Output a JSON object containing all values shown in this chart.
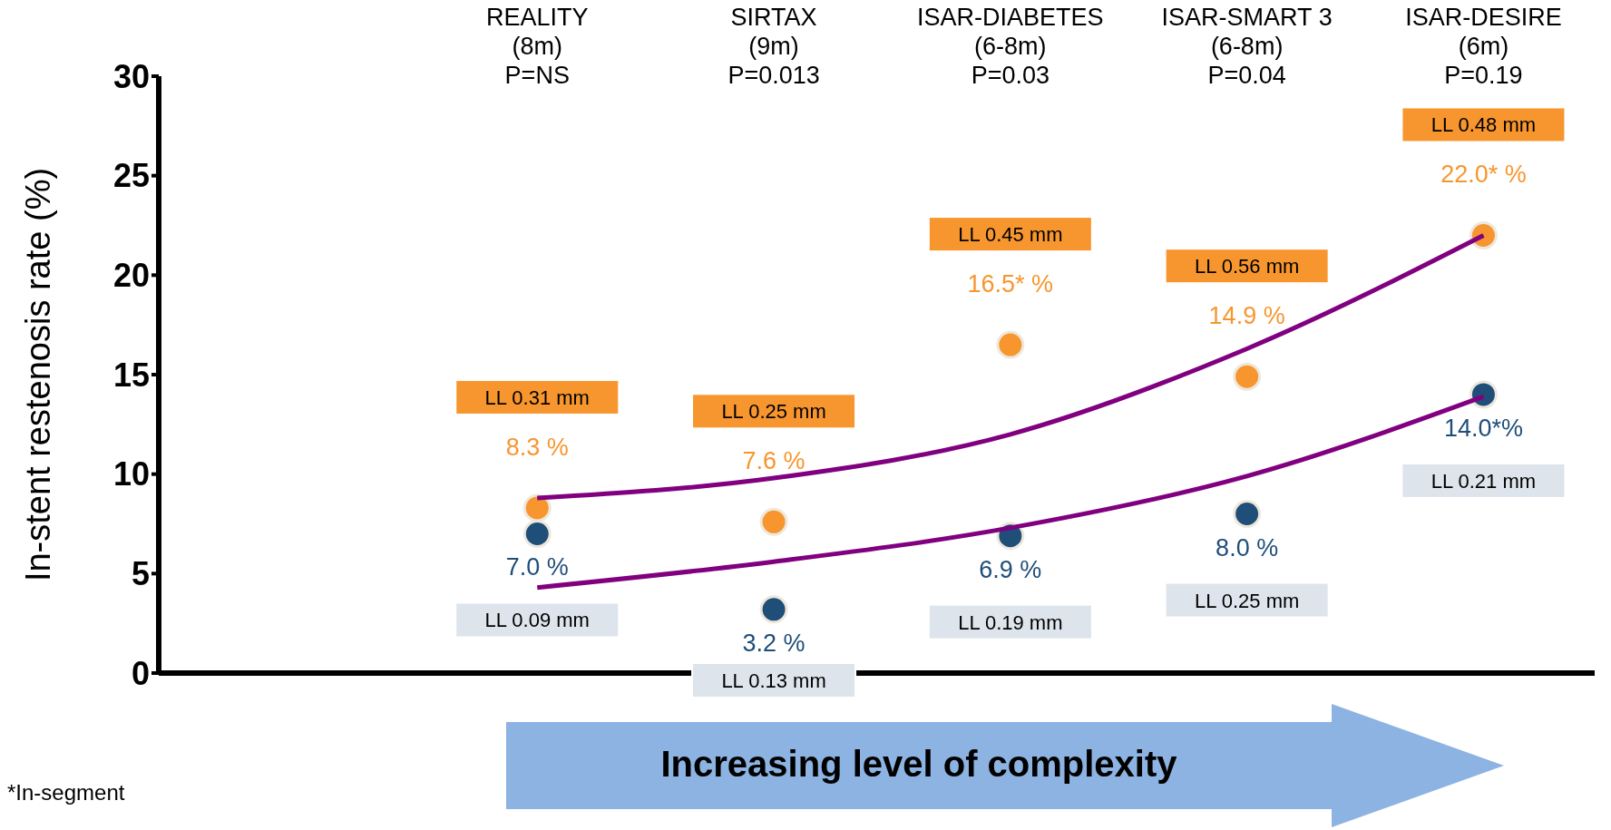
{
  "chart_data": {
    "type": "scatter",
    "ylabel": "In-stent restenosis rate (%)",
    "categories": [
      "REALITY\n(8m)\nP=NS",
      "SIRTAX\n(9m)\nP=0.013",
      "ISAR-DIABETES\n(6-8m)\nP=0.03",
      "ISAR-SMART 3\n(6-8m)\nP=0.04",
      "ISAR-DESIRE\n(6m)\nP=0.19"
    ],
    "series": [
      {
        "color": "#f7962f",
        "values": [
          8.3,
          7.6,
          16.5,
          14.9,
          22.0
        ],
        "value_labels": [
          "8.3 %",
          "7.6 %",
          "16.5* %",
          "14.9 %",
          "22.0* %"
        ]
      },
      {
        "color": "#1f4e79",
        "values": [
          7.0,
          3.2,
          6.9,
          8.0,
          14.0
        ],
        "value_labels": [
          "7.0 %",
          "3.2 %",
          "6.9 %",
          "8.0 %",
          "14.0*%"
        ]
      },
      {
        "type": "line",
        "marker": "none",
        "color": "#800080",
        "x": [
          "REALITY\n(8m)\nP=NS",
          "SIRTAX\n(9m)\nP=0.013",
          "ISAR-DIABETES\n(6-8m)\nP=0.03",
          "ISAR-SMART 3\n(6-8m)\nP=0.04",
          "ISAR-DESIRE\n(6m)\nP=0.19"
        ],
        "values": [
          8.8,
          9.8,
          12.0,
          16.3,
          22.0
        ]
      },
      {
        "type": "line",
        "marker": "none",
        "color": "#800080",
        "x": [
          "REALITY\n(8m)\nP=NS",
          "SIRTAX\n(9m)\nP=0.013",
          "ISAR-DIABETES\n(6-8m)\nP=0.03",
          "ISAR-SMART 3\n(6-8m)\nP=0.04",
          "ISAR-DESIRE\n(6m)\nP=0.19"
        ],
        "values": [
          4.3,
          5.6,
          7.3,
          9.9,
          13.9
        ]
      }
    ],
    "ylim": [
      0,
      30
    ],
    "yticks": [
      0,
      5,
      10,
      15,
      20,
      25,
      30
    ],
    "marker": "circle",
    "line_style": "solid",
    "annotations": [
      "*In-segment",
      "Increasing level of complexity",
      "LL 0.31 mm",
      "LL 0.25 mm",
      "LL 0.45 mm",
      "LL 0.56 mm",
      "LL 0.48 mm",
      "LL 0.09 mm",
      "LL 0.13 mm",
      "LL 0.19 mm",
      "LL 0.25 mm",
      "LL 0.21 mm"
    ]
  }
}
